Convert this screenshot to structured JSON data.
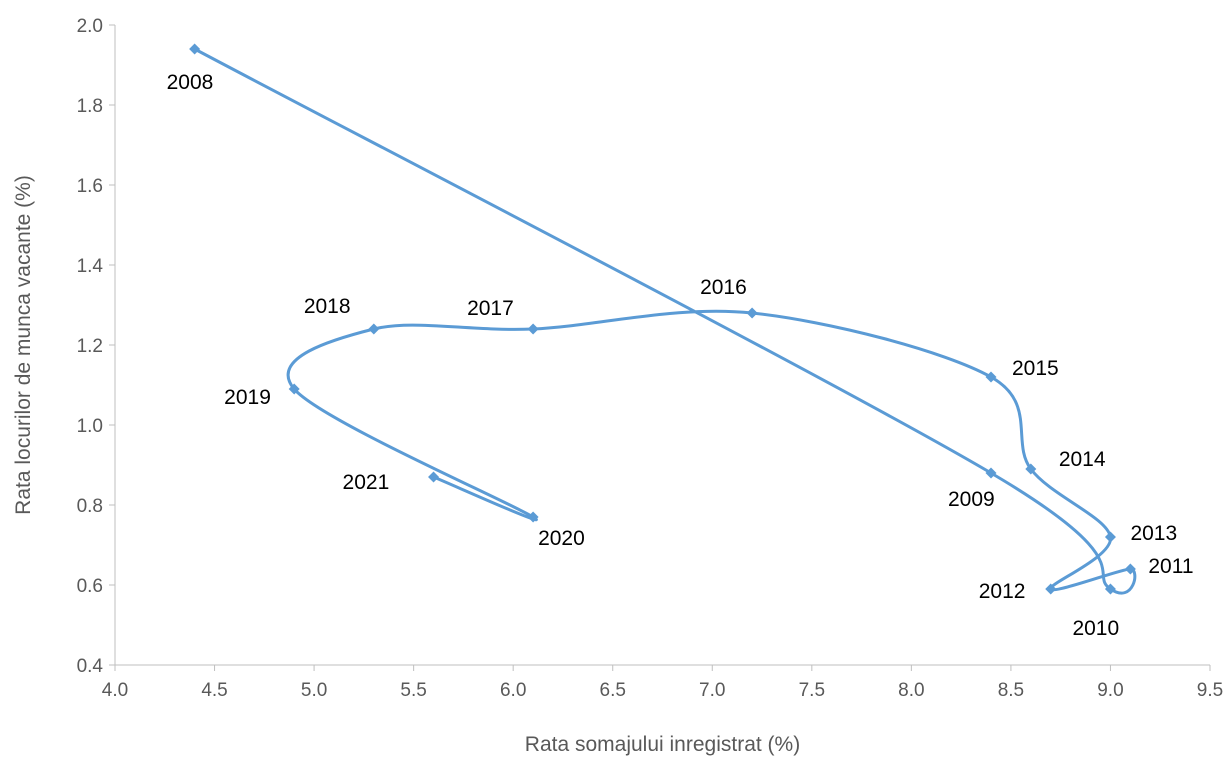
{
  "chart_data": {
    "type": "scatter",
    "title": "",
    "xlabel": "Rata somajului inregistrat (%)",
    "ylabel": "Rata locurilor de munca vacante (%)",
    "xlim": [
      4.0,
      9.5
    ],
    "ylim": [
      0.4,
      2.0
    ],
    "x_ticks": [
      "4.0",
      "4.5",
      "5.0",
      "5.5",
      "6.0",
      "6.5",
      "7.0",
      "7.5",
      "8.0",
      "8.5",
      "9.0",
      "9.5"
    ],
    "y_ticks": [
      "0.4",
      "0.6",
      "0.8",
      "1.0",
      "1.2",
      "1.4",
      "1.6",
      "1.8",
      "2.0"
    ],
    "grid": false,
    "connected": true,
    "smoothed": true,
    "marker": "diamond",
    "color": "#5B9BD5",
    "series": [
      {
        "points": [
          {
            "label": "2008",
            "x": 4.4,
            "y": 1.94
          },
          {
            "label": "2009",
            "x": 8.4,
            "y": 0.88
          },
          {
            "label": "2010",
            "x": 9.0,
            "y": 0.59
          },
          {
            "label": "2011",
            "x": 9.1,
            "y": 0.64
          },
          {
            "label": "2012",
            "x": 8.7,
            "y": 0.59
          },
          {
            "label": "2013",
            "x": 9.0,
            "y": 0.72
          },
          {
            "label": "2014",
            "x": 8.6,
            "y": 0.89
          },
          {
            "label": "2015",
            "x": 8.4,
            "y": 1.12
          },
          {
            "label": "2016",
            "x": 7.2,
            "y": 1.28
          },
          {
            "label": "2017",
            "x": 6.1,
            "y": 1.24
          },
          {
            "label": "2018",
            "x": 5.3,
            "y": 1.24
          },
          {
            "label": "2019",
            "x": 4.9,
            "y": 1.09
          },
          {
            "label": "2020",
            "x": 6.1,
            "y": 0.77
          },
          {
            "label": "2021",
            "x": 5.6,
            "y": 0.87
          }
        ]
      }
    ]
  }
}
